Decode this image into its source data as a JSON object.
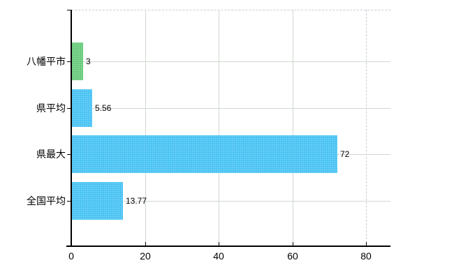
{
  "chart_data": {
    "type": "bar",
    "orientation": "horizontal",
    "title": "",
    "xlabel": "",
    "ylabel": "",
    "categories": [
      "八幡平市",
      "県平均",
      "県最大",
      "全国平均"
    ],
    "values": [
      3,
      5.56,
      72,
      13.77
    ],
    "value_labels": [
      "3",
      "5.56",
      "72",
      "13.77"
    ],
    "bar_colors": [
      "#65ca78",
      "#45c2f3",
      "#45c2f3",
      "#45c2f3"
    ],
    "x_ticks": [
      0,
      20,
      40,
      60,
      80
    ],
    "x_tick_labels": [
      "0",
      "20",
      "40",
      "60",
      "80"
    ],
    "xlim": [
      0,
      86.5
    ],
    "grid": true,
    "legend_position": "none",
    "dashed_gridline_at": 80,
    "top_border_style": "dashed",
    "colors": {
      "bar_green": "#65ca78",
      "bar_blue": "#45c2f3",
      "gridline": "#cfd9cf",
      "dashed_line": "#c9ccd6",
      "axis": "#000000",
      "text": "#000000",
      "background": "#ffffff"
    }
  }
}
